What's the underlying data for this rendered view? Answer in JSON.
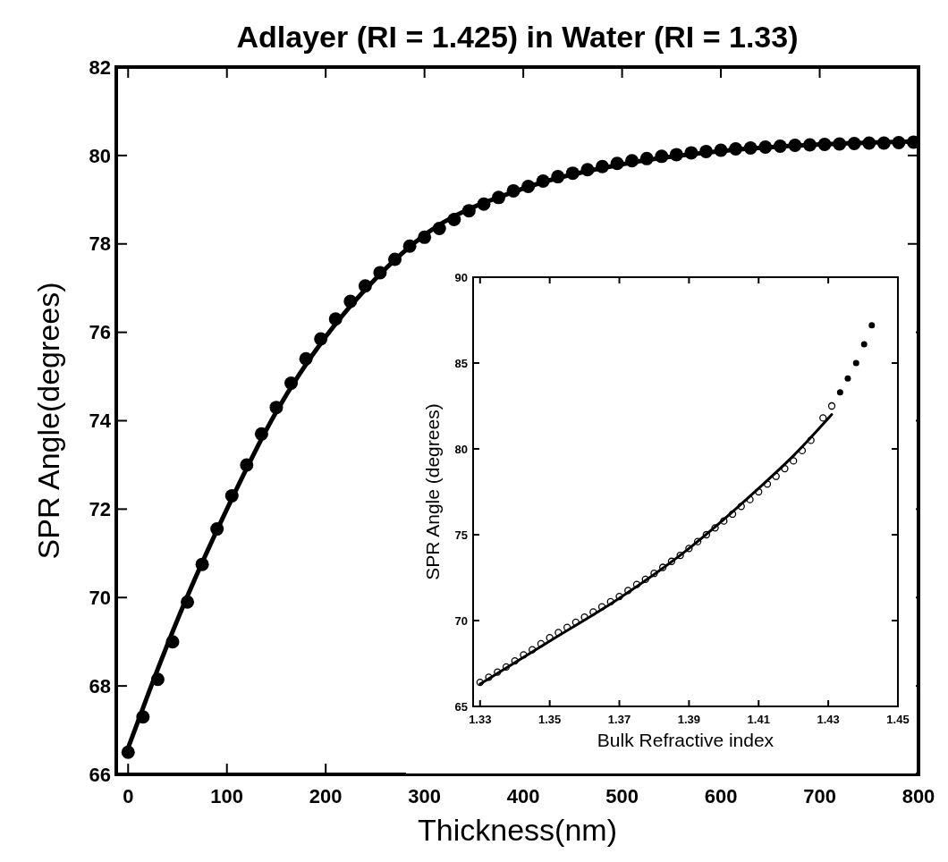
{
  "chart_data": [
    {
      "type": "scatter",
      "title": "Adlayer (RI = 1.425) in Water (RI = 1.33)",
      "xlabel": "Thickness(nm)",
      "ylabel": "SPR Angle(degrees)",
      "xlim": [
        -12,
        800
      ],
      "ylim": [
        66,
        82
      ],
      "xticks": [
        0,
        100,
        200,
        300,
        400,
        500,
        600,
        700,
        800
      ],
      "yticks": [
        66,
        68,
        70,
        72,
        74,
        76,
        78,
        80,
        82
      ],
      "grid": false,
      "series": [
        {
          "marker": "circle",
          "color": "#000000",
          "x": [
            0,
            15,
            30,
            45,
            60,
            75,
            90,
            105,
            120,
            135,
            150,
            165,
            180,
            195,
            210,
            225,
            240,
            255,
            270,
            285,
            300,
            315,
            330,
            345,
            360,
            375,
            390,
            405,
            420,
            435,
            450,
            465,
            480,
            495,
            510,
            525,
            540,
            555,
            570,
            585,
            600,
            615,
            630,
            645,
            660,
            675,
            690,
            705,
            720,
            735,
            750,
            765,
            780,
            795
          ],
          "values": [
            66.5,
            67.3,
            68.15,
            69.0,
            69.9,
            70.75,
            71.55,
            72.3,
            73.0,
            73.7,
            74.3,
            74.85,
            75.4,
            75.85,
            76.3,
            76.7,
            77.05,
            77.35,
            77.65,
            77.95,
            78.15,
            78.35,
            78.55,
            78.75,
            78.9,
            79.05,
            79.2,
            79.3,
            79.42,
            79.52,
            79.6,
            79.68,
            79.75,
            79.82,
            79.88,
            79.93,
            79.98,
            80.02,
            80.06,
            80.09,
            80.12,
            80.15,
            80.17,
            80.19,
            80.21,
            80.23,
            80.24,
            80.25,
            80.26,
            80.27,
            80.28,
            80.28,
            80.29,
            80.3
          ]
        },
        {
          "type": "line",
          "line_style": "solid",
          "color": "#000000",
          "x": [
            0,
            20,
            50,
            100,
            150,
            200,
            250,
            300,
            400,
            500,
            600,
            700,
            795
          ],
          "values": [
            66.6,
            67.8,
            69.5,
            72.0,
            74.2,
            75.9,
            77.2,
            78.2,
            79.25,
            79.8,
            80.1,
            80.25,
            80.32
          ]
        }
      ]
    },
    {
      "type": "scatter",
      "xlabel": "Bulk Refractive index",
      "ylabel": "SPR Angle (degrees)",
      "xlim": [
        1.328,
        1.45
      ],
      "ylim": [
        65,
        90
      ],
      "xticks": [
        {
          "value": 1.33,
          "label": "1.33"
        },
        {
          "value": 1.35,
          "label": "1.35"
        },
        {
          "value": 1.37,
          "label": "1.37"
        },
        {
          "value": 1.39,
          "label": "1.39"
        },
        {
          "value": 1.41,
          "label": "1.41"
        },
        {
          "value": 1.43,
          "label": "1.43"
        },
        {
          "value": 1.45,
          "label": "1.45"
        }
      ],
      "yticks": [
        65,
        70,
        75,
        80,
        85,
        90
      ],
      "grid": false,
      "series": [
        {
          "marker": "circle",
          "color": "#000000",
          "x": [
            1.33,
            1.3325,
            1.335,
            1.3375,
            1.34,
            1.3425,
            1.345,
            1.3475,
            1.35,
            1.3525,
            1.355,
            1.3575,
            1.36,
            1.3625,
            1.365,
            1.3675,
            1.37,
            1.3725,
            1.375,
            1.3775,
            1.38,
            1.3825,
            1.385,
            1.3875,
            1.39,
            1.3925,
            1.395,
            1.3975,
            1.4,
            1.4025,
            1.405,
            1.4075,
            1.41,
            1.4125,
            1.415,
            1.4175,
            1.42,
            1.4225,
            1.425,
            1.4285,
            1.431
          ],
          "values": [
            66.4,
            66.7,
            67.0,
            67.3,
            67.65,
            68.0,
            68.3,
            68.65,
            69.0,
            69.3,
            69.6,
            69.9,
            70.2,
            70.5,
            70.8,
            71.1,
            71.4,
            71.75,
            72.1,
            72.4,
            72.75,
            73.1,
            73.45,
            73.8,
            74.2,
            74.6,
            75.0,
            75.4,
            75.8,
            76.2,
            76.65,
            77.05,
            77.5,
            77.95,
            78.4,
            78.85,
            79.3,
            79.9,
            80.5,
            81.8,
            82.5
          ]
        },
        {
          "marker": "circle",
          "color": "#000000",
          "x": [
            1.4334,
            1.4356,
            1.438,
            1.4403,
            1.4425
          ],
          "values": [
            83.3,
            84.1,
            85.0,
            86.1,
            87.2
          ]
        },
        {
          "type": "line",
          "line_style": "solid",
          "color": "#000000",
          "x": [
            1.33,
            1.35,
            1.37,
            1.39,
            1.41,
            1.42,
            1.431
          ],
          "values": [
            66.3,
            68.8,
            71.3,
            74.2,
            77.7,
            79.6,
            82.0
          ]
        }
      ]
    }
  ]
}
